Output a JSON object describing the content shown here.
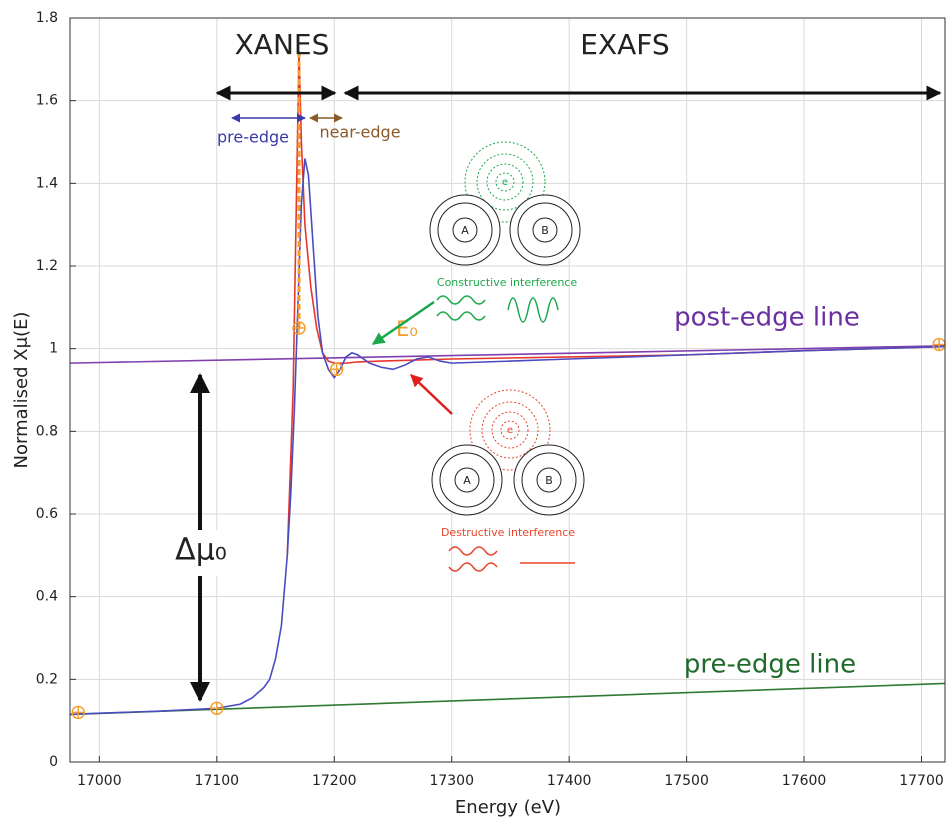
{
  "chart_data": {
    "type": "line",
    "xlabel": "Energy (eV)",
    "ylabel": "Normalised Xμ(E)",
    "xlim": [
      16975,
      17720
    ],
    "ylim": [
      0,
      1.8
    ],
    "xticks": [
      17000,
      17100,
      17200,
      17300,
      17400,
      17500,
      17600,
      17700
    ],
    "yticks": [
      0,
      0.2,
      0.4,
      0.6,
      0.8,
      1,
      1.2,
      1.4,
      1.6,
      1.8
    ],
    "grid": true,
    "series": [
      {
        "name": "post-edge line",
        "color": "#8040b0",
        "x": [
          16975,
          17720
        ],
        "values": [
          0.965,
          1.007
        ]
      },
      {
        "name": "pre-edge line",
        "color": "#2f7a35",
        "x": [
          16975,
          17720
        ],
        "values": [
          0.115,
          0.19
        ]
      },
      {
        "color": "#e8352b",
        "x": [
          17160,
          17165,
          17168,
          17170,
          17172,
          17175,
          17180,
          17185,
          17190,
          17195,
          17200,
          17210,
          17220,
          17240,
          17300,
          17400,
          17500,
          17600,
          17720
        ],
        "values": [
          0.5,
          0.9,
          1.4,
          1.72,
          1.5,
          1.3,
          1.15,
          1.05,
          0.99,
          0.97,
          0.965,
          0.965,
          0.968,
          0.97,
          0.975,
          0.98,
          0.985,
          0.995,
          1.005
        ]
      },
      {
        "color": "#4a4cc0",
        "x": [
          16975,
          17000,
          17050,
          17100,
          17120,
          17130,
          17140,
          17145,
          17150,
          17155,
          17160,
          17163,
          17166,
          17169,
          17172,
          17175,
          17178,
          17182,
          17186,
          17190,
          17195,
          17200,
          17205,
          17210,
          17215,
          17220,
          17230,
          17240,
          17250,
          17260,
          17270,
          17280,
          17290,
          17300,
          17350,
          17400,
          17500,
          17600,
          17720
        ],
        "values": [
          0.115,
          0.118,
          0.123,
          0.13,
          0.14,
          0.155,
          0.18,
          0.2,
          0.25,
          0.33,
          0.5,
          0.65,
          0.85,
          1.1,
          1.35,
          1.46,
          1.42,
          1.25,
          1.08,
          0.99,
          0.95,
          0.93,
          0.95,
          0.98,
          0.99,
          0.985,
          0.965,
          0.955,
          0.95,
          0.96,
          0.975,
          0.98,
          0.97,
          0.965,
          0.97,
          0.975,
          0.985,
          0.995,
          1.005
        ]
      }
    ],
    "e0": {
      "label": "E₀",
      "x": 17170,
      "y": [
        1.05,
        1.72
      ],
      "color": "#f39c29"
    },
    "markers": {
      "color": "#f39c29",
      "x": [
        16982,
        17100,
        17170,
        17202,
        17715
      ],
      "values": [
        0.12,
        0.13,
        1.05,
        0.95,
        1.01
      ]
    },
    "annotations": {
      "xanes": "XANES",
      "exafs": "EXAFS",
      "pre_edge": "pre-edge",
      "near_edge": "near-edge",
      "delta_mu": "Δμ₀",
      "constructive": "Constructive interference",
      "destructive": "Destructive interference",
      "atom_a": "A",
      "atom_b": "B",
      "electron": "e"
    }
  }
}
